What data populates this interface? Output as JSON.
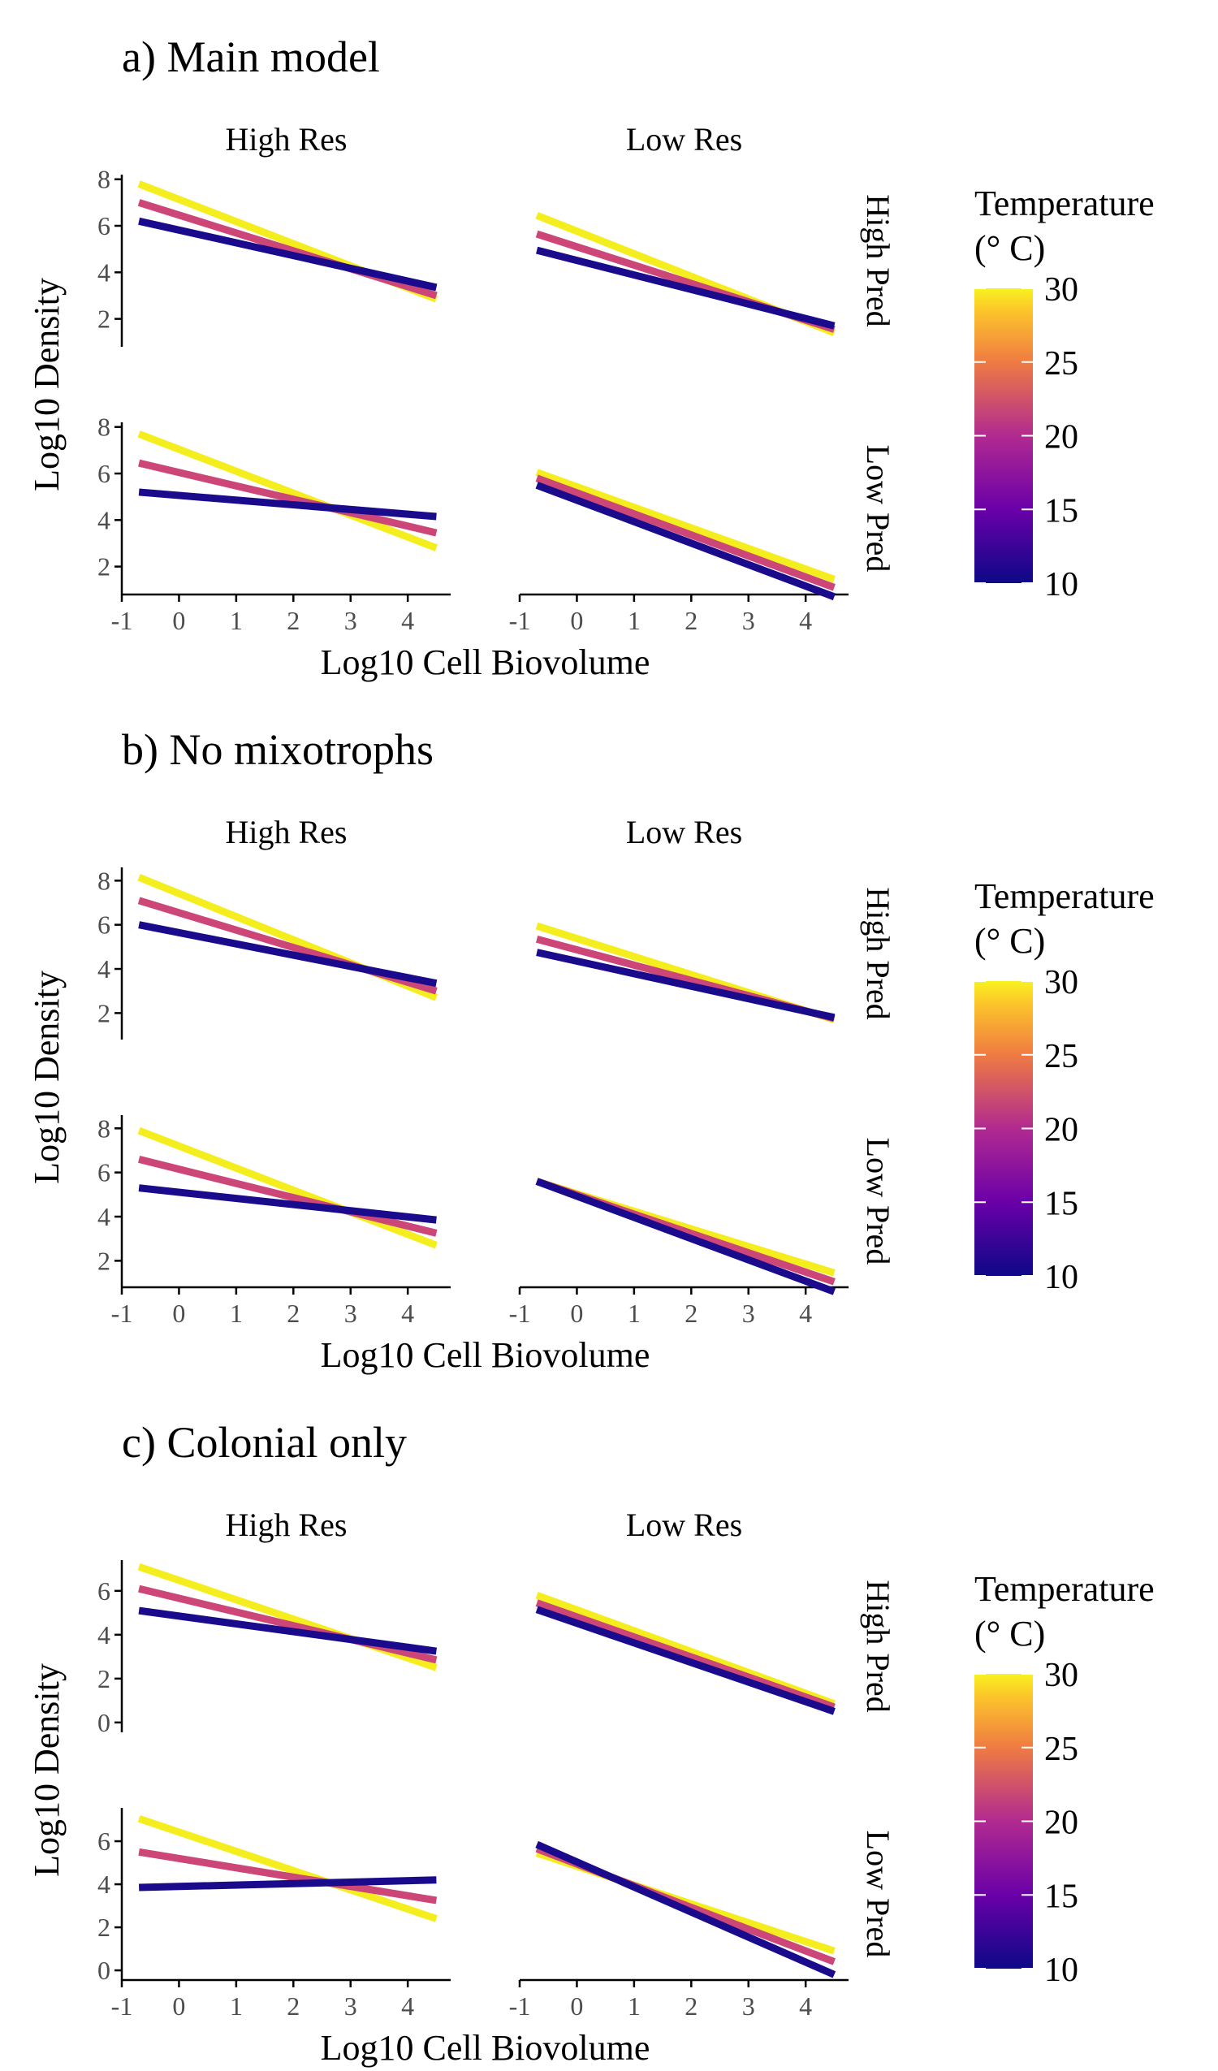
{
  "chart_data": [
    {
      "type": "line",
      "title": "a) Main model",
      "xlabel": "Log10 Cell Biovolume",
      "ylabel": "Log10 Density",
      "col_labels": [
        "High Res",
        "Low Res"
      ],
      "row_labels": [
        "High Pred",
        "Low Pred"
      ],
      "xlim": [
        -1,
        4.75
      ],
      "xticks": [
        -1,
        0,
        1,
        2,
        3,
        4
      ],
      "ylims": [
        [
          0.8,
          8.2
        ],
        [
          0.8,
          8.2
        ]
      ],
      "yticks": [
        [
          2,
          4,
          6,
          8
        ],
        [
          2,
          4,
          6,
          8
        ]
      ],
      "x": [
        -0.7,
        4.5
      ],
      "panels": [
        [
          {
            "series": [
              {
                "temp": 10,
                "values": [
                  6.2,
                  3.35
                ]
              },
              {
                "temp": 20,
                "values": [
                  7.0,
                  3.0
                ]
              },
              {
                "temp": 30,
                "values": [
                  7.8,
                  2.85
                ]
              }
            ]
          },
          {
            "series": [
              {
                "temp": 10,
                "values": [
                  4.95,
                  1.7
                ]
              },
              {
                "temp": 20,
                "values": [
                  5.65,
                  1.55
                ]
              },
              {
                "temp": 30,
                "values": [
                  6.45,
                  1.4
                ]
              }
            ]
          }
        ],
        [
          {
            "series": [
              {
                "temp": 10,
                "values": [
                  5.2,
                  4.15
                ]
              },
              {
                "temp": 20,
                "values": [
                  6.45,
                  3.45
                ]
              },
              {
                "temp": 30,
                "values": [
                  7.7,
                  2.8
                ]
              }
            ]
          },
          {
            "series": [
              {
                "temp": 10,
                "values": [
                  5.5,
                  0.7
                ]
              },
              {
                "temp": 20,
                "values": [
                  5.8,
                  1.1
                ]
              },
              {
                "temp": 30,
                "values": [
                  6.05,
                  1.45
                ]
              }
            ]
          }
        ]
      ],
      "legend": {
        "title_line1": "Temperature",
        "title_line2": "(° C)",
        "ticks": [
          10,
          15,
          20,
          25,
          30
        ],
        "range": [
          10,
          30
        ]
      }
    },
    {
      "type": "line",
      "title": "b) No mixotrophs",
      "xlabel": "Log10 Cell Biovolume",
      "ylabel": "Log10 Density",
      "col_labels": [
        "High Res",
        "Low Res"
      ],
      "row_labels": [
        "High Pred",
        "Low Pred"
      ],
      "xlim": [
        -1,
        4.75
      ],
      "xticks": [
        -1,
        0,
        1,
        2,
        3,
        4
      ],
      "ylims": [
        [
          0.8,
          8.6
        ],
        [
          0.8,
          8.6
        ]
      ],
      "yticks": [
        [
          2,
          4,
          6,
          8
        ],
        [
          2,
          4,
          6,
          8
        ]
      ],
      "x": [
        -0.7,
        4.5
      ],
      "panels": [
        [
          {
            "series": [
              {
                "temp": 10,
                "values": [
                  6.0,
                  3.35
                ]
              },
              {
                "temp": 20,
                "values": [
                  7.1,
                  3.0
                ]
              },
              {
                "temp": 30,
                "values": [
                  8.15,
                  2.7
                ]
              }
            ]
          },
          {
            "series": [
              {
                "temp": 10,
                "values": [
                  4.75,
                  1.8
                ]
              },
              {
                "temp": 20,
                "values": [
                  5.35,
                  1.75
                ]
              },
              {
                "temp": 30,
                "values": [
                  5.95,
                  1.7
                ]
              }
            ]
          }
        ],
        [
          {
            "series": [
              {
                "temp": 10,
                "values": [
                  5.3,
                  3.85
                ]
              },
              {
                "temp": 20,
                "values": [
                  6.6,
                  3.25
                ]
              },
              {
                "temp": 30,
                "values": [
                  7.9,
                  2.7
                ]
              }
            ]
          },
          {
            "series": [
              {
                "temp": 10,
                "values": [
                  5.6,
                  0.6
                ]
              },
              {
                "temp": 20,
                "values": [
                  5.6,
                  1.05
                ]
              },
              {
                "temp": 30,
                "values": [
                  5.6,
                  1.45
                ]
              }
            ]
          }
        ]
      ],
      "legend": {
        "title_line1": "Temperature",
        "title_line2": "(° C)",
        "ticks": [
          10,
          15,
          20,
          25,
          30
        ],
        "range": [
          10,
          30
        ]
      }
    },
    {
      "type": "line",
      "title": "c) Colonial only",
      "xlabel": "Log10 Cell Biovolume",
      "ylabel": "Log10 Density",
      "col_labels": [
        "High Res",
        "Low Res"
      ],
      "row_labels": [
        "High Pred",
        "Low Pred"
      ],
      "xlim": [
        -1,
        4.75
      ],
      "xticks": [
        -1,
        0,
        1,
        2,
        3,
        4
      ],
      "ylims": [
        [
          -0.45,
          7.4
        ],
        [
          -0.45,
          7.55
        ]
      ],
      "yticks": [
        [
          0,
          2,
          4,
          6
        ],
        [
          0,
          2,
          4,
          6
        ]
      ],
      "x": [
        -0.7,
        4.5
      ],
      "panels": [
        [
          {
            "series": [
              {
                "temp": 10,
                "values": [
                  5.1,
                  3.25
                ]
              },
              {
                "temp": 20,
                "values": [
                  6.1,
                  2.85
                ]
              },
              {
                "temp": 30,
                "values": [
                  7.1,
                  2.5
                ]
              }
            ]
          },
          {
            "series": [
              {
                "temp": 10,
                "values": [
                  5.15,
                  0.5
                ]
              },
              {
                "temp": 20,
                "values": [
                  5.45,
                  0.7
                ]
              },
              {
                "temp": 30,
                "values": [
                  5.8,
                  0.85
                ]
              }
            ]
          }
        ],
        [
          {
            "series": [
              {
                "temp": 10,
                "values": [
                  3.85,
                  4.2
                ]
              },
              {
                "temp": 20,
                "values": [
                  5.5,
                  3.25
                ]
              },
              {
                "temp": 30,
                "values": [
                  7.05,
                  2.4
                ]
              }
            ]
          },
          {
            "series": [
              {
                "temp": 10,
                "values": [
                  5.85,
                  -0.2
                ]
              },
              {
                "temp": 20,
                "values": [
                  5.65,
                  0.4
                ]
              },
              {
                "temp": 30,
                "values": [
                  5.45,
                  0.9
                ]
              }
            ]
          }
        ]
      ],
      "legend": {
        "title_line1": "Temperature",
        "title_line2": "(° C)",
        "ticks": [
          10,
          15,
          20,
          25,
          30
        ],
        "range": [
          10,
          30
        ]
      }
    }
  ],
  "colors": {
    "t10": "#1a0a8c",
    "t20": "#cc4778",
    "t30": "#f5ee1e",
    "axis": "#000000",
    "tick_label": "#4d4d4d"
  }
}
